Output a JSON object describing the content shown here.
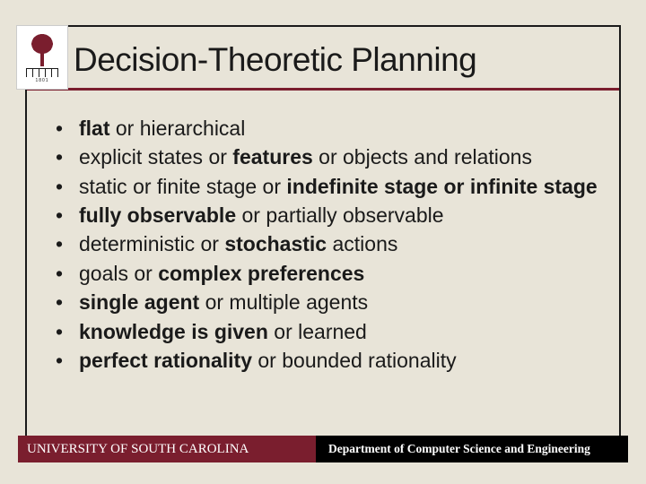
{
  "colors": {
    "background": "#e8e4d8",
    "border": "#1a1a1a",
    "accent": "#7a1e2e",
    "footer_right_bg": "#000000",
    "text": "#1a1a1a",
    "footer_text": "#ffffff"
  },
  "logo": {
    "year": "1801"
  },
  "title": "Decision-Theoretic Planning",
  "bullets": [
    {
      "segments": [
        {
          "t": "flat",
          "b": true
        },
        {
          "t": " or hierarchical",
          "b": false
        }
      ]
    },
    {
      "segments": [
        {
          "t": "explicit states or ",
          "b": false
        },
        {
          "t": "features",
          "b": true
        },
        {
          "t": " or objects and relations",
          "b": false
        }
      ]
    },
    {
      "segments": [
        {
          "t": "static or finite stage or ",
          "b": false
        },
        {
          "t": "indefinite stage or infinite stage",
          "b": true
        }
      ]
    },
    {
      "segments": [
        {
          "t": "fully observable",
          "b": true
        },
        {
          "t": " or partially observable",
          "b": false
        }
      ]
    },
    {
      "segments": [
        {
          "t": "deterministic or ",
          "b": false
        },
        {
          "t": "stochastic",
          "b": true
        },
        {
          "t": " actions",
          "b": false
        }
      ]
    },
    {
      "segments": [
        {
          "t": "goals or ",
          "b": false
        },
        {
          "t": "complex preferences",
          "b": true
        }
      ]
    },
    {
      "segments": [
        {
          "t": "single agent",
          "b": true
        },
        {
          "t": " or multiple agents",
          "b": false
        }
      ]
    },
    {
      "segments": [
        {
          "t": "knowledge is given",
          "b": true
        },
        {
          "t": " or learned",
          "b": false
        }
      ]
    },
    {
      "segments": [
        {
          "t": "perfect rationality",
          "b": true
        },
        {
          "t": " or bounded rationality",
          "b": false
        }
      ]
    }
  ],
  "footer": {
    "left": "UNIVERSITY OF SOUTH CAROLINA",
    "right": "Department of Computer Science and Engineering"
  }
}
